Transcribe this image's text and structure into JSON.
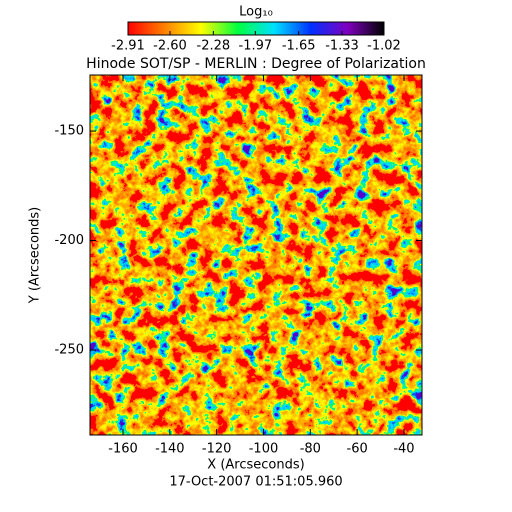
{
  "chart_data": {
    "type": "image",
    "title": "Hinode SOT/SP - MERLIN : Degree of Polarization",
    "subtitle": "17-Oct-2007 01:51:05.960",
    "x_label": "X (Arcseconds)",
    "y_label": "Y (Arcseconds)",
    "xlim": [
      -174.1,
      -32.3
    ],
    "ylim": [
      -288.8,
      -124.4
    ],
    "xticks": [
      -160,
      -140,
      -120,
      -100,
      -80,
      -60,
      -40
    ],
    "yticks": [
      -150,
      -200,
      -250
    ],
    "colorbar": {
      "label": "Log₁₀",
      "clim": [
        -2.91,
        -1.02
      ],
      "colors": [
        "#ff0000",
        "#ff8000",
        "#ffff00",
        "#00ff40",
        "#00e0ff",
        "#0030ff",
        "#8000c0",
        "#000000"
      ],
      "ticks": [
        {
          "value": -2.91,
          "label": "-2.91"
        },
        {
          "value": -2.6,
          "label": "-2.60"
        },
        {
          "value": -2.28,
          "label": "-2.28"
        },
        {
          "value": -1.97,
          "label": "-1.97"
        },
        {
          "value": -1.65,
          "label": "-1.65"
        },
        {
          "value": -1.33,
          "label": "-1.33"
        },
        {
          "value": -1.02,
          "label": "-1.02"
        }
      ]
    }
  }
}
